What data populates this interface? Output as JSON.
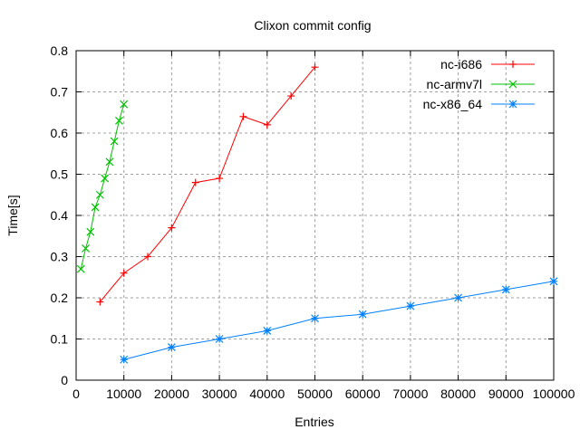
{
  "chart_data": {
    "type": "line",
    "title": "Clixon commit config",
    "xlabel": "Entries",
    "ylabel": "Time[s]",
    "xlim": [
      0,
      100000
    ],
    "ylim": [
      0,
      0.8
    ],
    "xticks": [
      0,
      10000,
      20000,
      30000,
      40000,
      50000,
      60000,
      70000,
      80000,
      90000,
      100000
    ],
    "yticks": [
      0,
      0.1,
      0.2,
      0.3,
      0.4,
      0.5,
      0.6,
      0.7,
      0.8
    ],
    "grid": true,
    "legend_position": "top-right",
    "series": [
      {
        "name": "nc-i686",
        "color": "#ff0000",
        "marker": "plus",
        "x": [
          5000,
          10000,
          15000,
          20000,
          25000,
          30000,
          35000,
          40000,
          45000,
          50000
        ],
        "y": [
          0.19,
          0.26,
          0.3,
          0.37,
          0.48,
          0.49,
          0.64,
          0.62,
          0.69,
          0.76
        ]
      },
      {
        "name": "nc-armv7l",
        "color": "#00c000",
        "marker": "cross",
        "x": [
          1000,
          2000,
          3000,
          4000,
          5000,
          6000,
          7000,
          8000,
          9000,
          10000
        ],
        "y": [
          0.27,
          0.32,
          0.36,
          0.42,
          0.45,
          0.49,
          0.53,
          0.58,
          0.63,
          0.67
        ]
      },
      {
        "name": "nc-x86_64",
        "color": "#0080ff",
        "marker": "star",
        "x": [
          10000,
          20000,
          30000,
          40000,
          50000,
          60000,
          70000,
          80000,
          90000,
          100000
        ],
        "y": [
          0.05,
          0.08,
          0.1,
          0.12,
          0.15,
          0.16,
          0.18,
          0.2,
          0.22,
          0.24
        ]
      }
    ]
  }
}
